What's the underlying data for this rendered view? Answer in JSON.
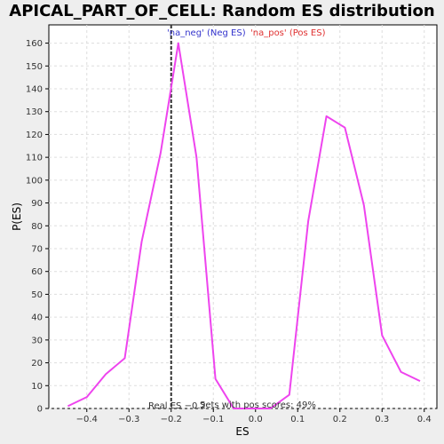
{
  "chart_data": {
    "type": "line",
    "title": "APICAL_PART_OF_CELL: Random ES distribution",
    "xlabel": "ES",
    "ylabel": "P(ES)",
    "xlim": [
      -0.49,
      0.43
    ],
    "ylim": [
      0,
      168
    ],
    "x_ticks": [
      -0.4,
      -0.3,
      -0.2,
      -0.1,
      0.0,
      0.1,
      0.2,
      0.3,
      0.4
    ],
    "x_tick_labels": [
      "−0.4",
      "−0.3",
      "−0.2",
      "−0.1",
      "0.0",
      "0.1",
      "0.2",
      "0.3",
      "0.4"
    ],
    "y_ticks": [
      0,
      10,
      20,
      30,
      40,
      50,
      60,
      70,
      80,
      90,
      100,
      110,
      120,
      130,
      140,
      150,
      160
    ],
    "grid": true,
    "series": [
      {
        "name": "",
        "color": "#ee44ee",
        "x": [
          -0.445,
          -0.4,
          -0.355,
          -0.31,
          -0.27,
          -0.225,
          -0.183,
          -0.14,
          -0.095,
          -0.052,
          0.0,
          0.035,
          0.08,
          0.125,
          0.168,
          0.212,
          0.257,
          0.3,
          0.345,
          0.39
        ],
        "y": [
          1,
          5,
          15,
          22,
          73,
          112,
          160,
          110,
          13,
          0,
          0,
          0,
          6,
          82,
          128,
          123,
          89,
          32,
          16,
          12
        ]
      }
    ],
    "real_es": -0.2,
    "legend": {
      "neg_label": "'na_neg' (Neg ES)",
      "pos_label": "'na_pos' (Pos ES)",
      "placement": "top"
    },
    "annotations": {
      "real_es": "Real ES −0.2",
      "pos_scores": "Sets with pos scores: 49%"
    },
    "colors": {
      "background": "#eeeeee",
      "plot_bg": "#ffffff",
      "curve": "#ee44ee",
      "neg": "#3333cc",
      "pos": "#e03030",
      "marker": "#333333"
    }
  }
}
